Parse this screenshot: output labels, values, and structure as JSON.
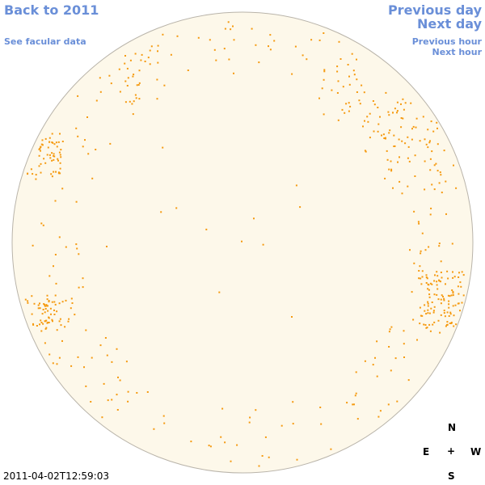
{
  "nav": {
    "back": "Back to 2011",
    "facular": "See facular data",
    "prev_day": "Previous day",
    "next_day": "Next day",
    "prev_hour": "Previous hour",
    "next_hour": "Next hour"
  },
  "compass": {
    "north": "N",
    "east": "E",
    "center": "+",
    "west": "W",
    "south": "S"
  },
  "timestamp": "2011-04-02T12:59:03",
  "colors": {
    "disk_fill": "#fdf8ea",
    "disk_edge": "#b9b4aa",
    "facula": "#f59a10",
    "link": "#6a8fd8"
  }
}
